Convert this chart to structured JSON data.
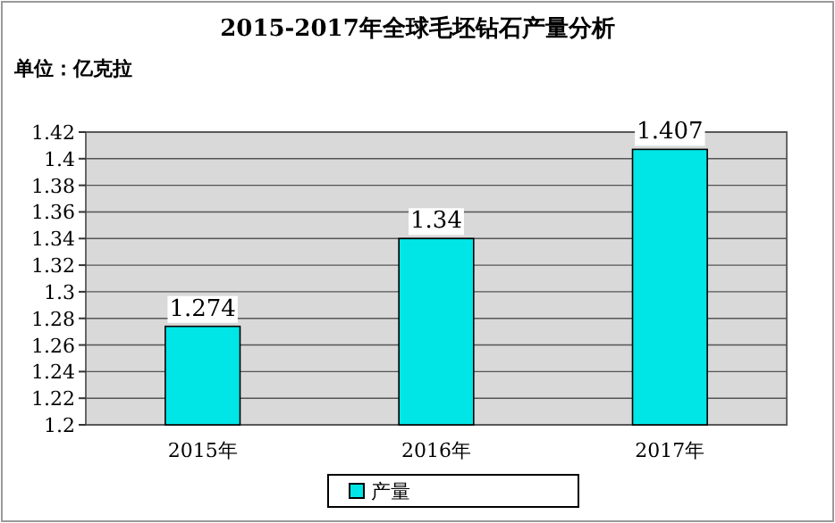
{
  "chart_data": {
    "type": "bar",
    "title": "2015-2017年全球毛坯钻石产量分析",
    "annotations": [
      "单位：亿克拉"
    ],
    "categories": [
      "2015年",
      "2016年",
      "2017年"
    ],
    "series": [
      {
        "name": "产量",
        "color": "#00e6e6",
        "values": [
          1.274,
          1.34,
          1.407
        ]
      }
    ],
    "ylim": [
      1.2,
      1.42
    ],
    "yticks": [
      1.2,
      1.22,
      1.24,
      1.26,
      1.28,
      1.3,
      1.32,
      1.34,
      1.36,
      1.38,
      1.4,
      1.42
    ],
    "grid": "y",
    "legend": "bottom",
    "data_labels": true
  }
}
